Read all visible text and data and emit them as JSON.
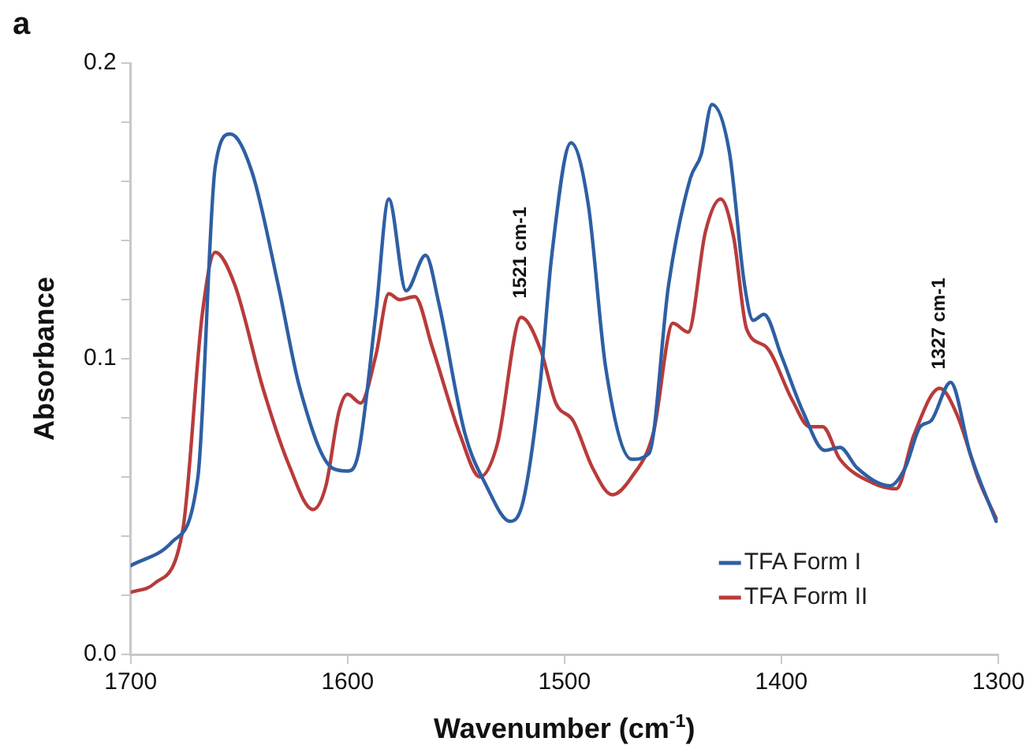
{
  "chart_data": {
    "type": "line",
    "xlabel": "Wavenumber (cm$^{-1}$)",
    "ylabel": "Absorbance",
    "annotations": [
      "a",
      {
        "text": "1521 cm-1",
        "x": 1520,
        "y": 0.114
      },
      {
        "text": "1327 cm-1",
        "x": 1327,
        "y": 0.09
      }
    ],
    "xlim": [
      1700,
      1300
    ],
    "xticks": [
      1700,
      1600,
      1500,
      1400,
      1300
    ],
    "ylim": [
      0,
      0.2
    ],
    "yticks": [
      {
        "value": 0,
        "label": "0.0"
      },
      {
        "value": 0.02,
        "label": null
      },
      {
        "value": 0.04,
        "label": null
      },
      {
        "value": 0.06,
        "label": null
      },
      {
        "value": 0.08,
        "label": null
      },
      {
        "value": 0.1,
        "label": "0.1"
      },
      {
        "value": 0.12,
        "label": null
      },
      {
        "value": 0.14,
        "label": null
      },
      {
        "value": 0.16,
        "label": null
      },
      {
        "value": 0.18,
        "label": null
      },
      {
        "value": 0.2,
        "label": "0.2"
      }
    ],
    "grid": false,
    "legend": "bottom right",
    "marker": "none",
    "line_style": "solid",
    "series": [
      {
        "name": "TFA Form I",
        "color": "#2e5fa3",
        "x": [
          1700,
          1681,
          1669,
          1661,
          1654,
          1644,
          1632,
          1622,
          1607,
          1600,
          1595,
          1587,
          1581,
          1573,
          1564,
          1558,
          1546,
          1536,
          1525,
          1519,
          1511,
          1506,
          1497,
          1489,
          1481,
          1469,
          1461,
          1452,
          1442,
          1437,
          1432,
          1424,
          1417,
          1413,
          1408,
          1400,
          1390,
          1380,
          1373,
          1365,
          1350,
          1343,
          1336,
          1331,
          1322,
          1313,
          1301
        ],
        "values": [
          0.03,
          0.038,
          0.06,
          0.165,
          0.176,
          0.163,
          0.125,
          0.09,
          0.063,
          0.062,
          0.068,
          0.115,
          0.154,
          0.123,
          0.135,
          0.119,
          0.075,
          0.057,
          0.045,
          0.052,
          0.093,
          0.134,
          0.173,
          0.152,
          0.097,
          0.066,
          0.068,
          0.125,
          0.161,
          0.169,
          0.186,
          0.17,
          0.125,
          0.113,
          0.115,
          0.101,
          0.082,
          0.069,
          0.07,
          0.063,
          0.057,
          0.063,
          0.077,
          0.079,
          0.092,
          0.068,
          0.045
        ]
      },
      {
        "name": "TFA Form II",
        "color": "#b83b3b",
        "x": [
          1700,
          1689,
          1676,
          1667,
          1661,
          1652,
          1639,
          1627,
          1616,
          1610,
          1604,
          1600,
          1594,
          1587,
          1581,
          1576,
          1569,
          1561,
          1548,
          1539,
          1531,
          1520,
          1511,
          1504,
          1496,
          1487,
          1478,
          1469,
          1459,
          1450,
          1443,
          1435,
          1428,
          1422,
          1416,
          1407,
          1395,
          1387,
          1381,
          1373,
          1358,
          1347,
          1339,
          1327,
          1319,
          1309,
          1301
        ],
        "values": [
          0.021,
          0.024,
          0.042,
          0.115,
          0.136,
          0.125,
          0.09,
          0.064,
          0.049,
          0.057,
          0.082,
          0.088,
          0.085,
          0.101,
          0.122,
          0.12,
          0.121,
          0.104,
          0.074,
          0.06,
          0.071,
          0.114,
          0.103,
          0.085,
          0.079,
          0.063,
          0.054,
          0.06,
          0.075,
          0.112,
          0.109,
          0.143,
          0.154,
          0.141,
          0.11,
          0.104,
          0.086,
          0.077,
          0.077,
          0.066,
          0.058,
          0.056,
          0.074,
          0.09,
          0.081,
          0.059,
          0.046
        ]
      }
    ]
  }
}
